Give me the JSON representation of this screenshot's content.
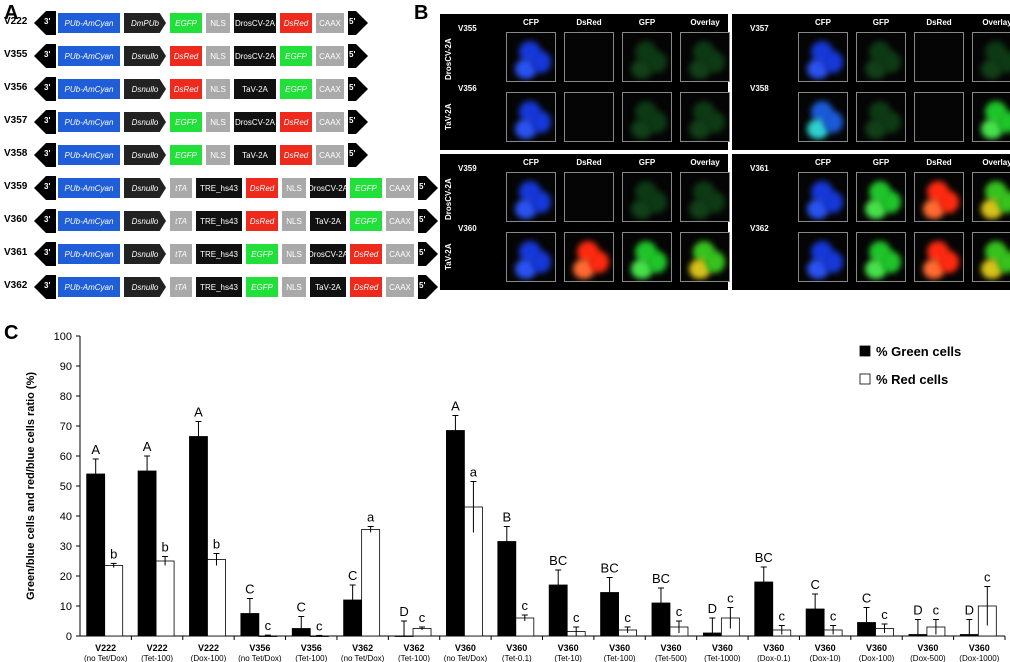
{
  "panels": {
    "a": "A",
    "b": "B",
    "c": "C"
  },
  "constructs": [
    {
      "id": "V222",
      "segments": [
        {
          "t": "PUb-AmCyan",
          "c": "blue",
          "w": 62
        },
        {
          "t": "DmPUb",
          "c": "prom",
          "w": 42
        },
        {
          "t": "EGFP",
          "c": "green",
          "w": 32
        },
        {
          "t": "NLS",
          "c": "gray",
          "w": 24
        },
        {
          "t": "DrosCV-2A",
          "c": "black",
          "w": 42
        },
        {
          "t": "DsRed",
          "c": "red",
          "w": 32
        },
        {
          "t": "CAAX",
          "c": "gray",
          "w": 28
        }
      ]
    },
    {
      "id": "V355",
      "segments": [
        {
          "t": "PUb-AmCyan",
          "c": "blue",
          "w": 62
        },
        {
          "t": "Dsnullo",
          "c": "prom",
          "w": 42
        },
        {
          "t": "DsRed",
          "c": "red",
          "w": 32
        },
        {
          "t": "NLS",
          "c": "gray",
          "w": 24
        },
        {
          "t": "DrosCV-2A",
          "c": "black",
          "w": 42
        },
        {
          "t": "EGFP",
          "c": "green",
          "w": 32
        },
        {
          "t": "CAAX",
          "c": "gray",
          "w": 28
        }
      ]
    },
    {
      "id": "V356",
      "segments": [
        {
          "t": "PUb-AmCyan",
          "c": "blue",
          "w": 62
        },
        {
          "t": "Dsnullo",
          "c": "prom",
          "w": 42
        },
        {
          "t": "DsRed",
          "c": "red",
          "w": 32
        },
        {
          "t": "NLS",
          "c": "gray",
          "w": 24
        },
        {
          "t": "TaV-2A",
          "c": "black",
          "w": 42
        },
        {
          "t": "EGFP",
          "c": "green",
          "w": 32
        },
        {
          "t": "CAAX",
          "c": "gray",
          "w": 28
        }
      ]
    },
    {
      "id": "V357",
      "segments": [
        {
          "t": "PUb-AmCyan",
          "c": "blue",
          "w": 62
        },
        {
          "t": "Dsnullo",
          "c": "prom",
          "w": 42
        },
        {
          "t": "EGFP",
          "c": "green",
          "w": 32
        },
        {
          "t": "NLS",
          "c": "gray",
          "w": 24
        },
        {
          "t": "DrosCV-2A",
          "c": "black",
          "w": 42
        },
        {
          "t": "DsRed",
          "c": "red",
          "w": 32
        },
        {
          "t": "CAAX",
          "c": "gray",
          "w": 28
        }
      ]
    },
    {
      "id": "V358",
      "segments": [
        {
          "t": "PUb-AmCyan",
          "c": "blue",
          "w": 62
        },
        {
          "t": "Dsnullo",
          "c": "prom",
          "w": 42
        },
        {
          "t": "EGFP",
          "c": "green",
          "w": 32
        },
        {
          "t": "NLS",
          "c": "gray",
          "w": 24
        },
        {
          "t": "TaV-2A",
          "c": "black",
          "w": 42
        },
        {
          "t": "DsRed",
          "c": "red",
          "w": 32
        },
        {
          "t": "CAAX",
          "c": "gray",
          "w": 28
        }
      ]
    },
    {
      "id": "V359",
      "segments": [
        {
          "t": "PUb-AmCyan",
          "c": "blue",
          "w": 62
        },
        {
          "t": "Dsnullo",
          "c": "prom",
          "w": 42
        },
        {
          "t": "tTA",
          "c": "tta",
          "w": 22
        },
        {
          "t": "TRE_hs43",
          "c": "black",
          "w": 46
        },
        {
          "t": "DsRed",
          "c": "red",
          "w": 32
        },
        {
          "t": "NLS",
          "c": "gray",
          "w": 24
        },
        {
          "t": "DrosCV-2A",
          "c": "black",
          "w": 36
        },
        {
          "t": "EGFP",
          "c": "green",
          "w": 32
        },
        {
          "t": "CAAX",
          "c": "gray",
          "w": 28
        }
      ]
    },
    {
      "id": "V360",
      "segments": [
        {
          "t": "PUb-AmCyan",
          "c": "blue",
          "w": 62
        },
        {
          "t": "Dsnullo",
          "c": "prom",
          "w": 42
        },
        {
          "t": "tTA",
          "c": "tta",
          "w": 22
        },
        {
          "t": "TRE_hs43",
          "c": "black",
          "w": 46
        },
        {
          "t": "DsRed",
          "c": "red",
          "w": 32
        },
        {
          "t": "NLS",
          "c": "gray",
          "w": 24
        },
        {
          "t": "TaV-2A",
          "c": "black",
          "w": 36
        },
        {
          "t": "EGFP",
          "c": "green",
          "w": 32
        },
        {
          "t": "CAAX",
          "c": "gray",
          "w": 28
        }
      ]
    },
    {
      "id": "V361",
      "segments": [
        {
          "t": "PUb-AmCyan",
          "c": "blue",
          "w": 62
        },
        {
          "t": "Dsnullo",
          "c": "prom",
          "w": 42
        },
        {
          "t": "tTA",
          "c": "tta",
          "w": 22
        },
        {
          "t": "TRE_hs43",
          "c": "black",
          "w": 46
        },
        {
          "t": "EGFP",
          "c": "green",
          "w": 32
        },
        {
          "t": "NLS",
          "c": "gray",
          "w": 24
        },
        {
          "t": "DrosCV-2A",
          "c": "black",
          "w": 36
        },
        {
          "t": "DsRed",
          "c": "red",
          "w": 32
        },
        {
          "t": "CAAX",
          "c": "gray",
          "w": 28
        }
      ]
    },
    {
      "id": "V362",
      "segments": [
        {
          "t": "PUb-AmCyan",
          "c": "blue",
          "w": 62
        },
        {
          "t": "Dsnullo",
          "c": "prom",
          "w": 42
        },
        {
          "t": "tTA",
          "c": "tta",
          "w": 22
        },
        {
          "t": "TRE_hs43",
          "c": "black",
          "w": 46
        },
        {
          "t": "EGFP",
          "c": "green",
          "w": 32
        },
        {
          "t": "NLS",
          "c": "gray",
          "w": 24
        },
        {
          "t": "TaV-2A",
          "c": "black",
          "w": 36
        },
        {
          "t": "DsRed",
          "c": "red",
          "w": 32
        },
        {
          "t": "CAAX",
          "c": "gray",
          "w": 28
        }
      ]
    }
  ],
  "ends": {
    "left": "3'",
    "right": "5'"
  },
  "micro": {
    "blocks": [
      {
        "cols": [
          "CFP",
          "DsRed",
          "GFP",
          "Overlay"
        ],
        "side": "DrosCV-2A",
        "side2": "TaV-2A",
        "rows": [
          "V355",
          "V356"
        ],
        "cells": [
          [
            "b",
            "",
            "g",
            "g"
          ],
          [
            "b",
            "",
            "g",
            "g"
          ]
        ]
      },
      {
        "cols": [
          "CFP",
          "GFP",
          "DsRed",
          "Overlay"
        ],
        "rows": [
          "V357",
          "V358"
        ],
        "cells": [
          [
            "b",
            "g",
            "",
            "g"
          ],
          [
            "bc",
            "g",
            "",
            "G"
          ]
        ]
      },
      {
        "cols": [
          "CFP",
          "DsRed",
          "GFP",
          "Overlay"
        ],
        "side": "DrosCV-2A",
        "side2": "TaV-2A",
        "rows": [
          "V359",
          "V360"
        ],
        "cells": [
          [
            "b",
            "",
            "g",
            "g"
          ],
          [
            "b",
            "R",
            "G",
            "Y"
          ]
        ]
      },
      {
        "cols": [
          "CFP",
          "GFP",
          "DsRed",
          "Overlay"
        ],
        "rows": [
          "V361",
          "V362"
        ],
        "cells": [
          [
            "b",
            "G",
            "R",
            "Y"
          ],
          [
            "b",
            "G",
            "R",
            "Y"
          ]
        ]
      }
    ]
  },
  "chart_data": {
    "type": "bar",
    "ylabel": "Green/blue cells and red/blue cells ratio (%)",
    "ylim": [
      0,
      100
    ],
    "yticks": [
      0,
      10,
      20,
      30,
      40,
      50,
      60,
      70,
      80,
      90,
      100
    ],
    "categories": [
      [
        "V222",
        "(no Tet/Dox)"
      ],
      [
        "V222",
        "(Tet-100)"
      ],
      [
        "V222",
        "(Dox-100)"
      ],
      [
        "V356",
        "(no Tet/Dox)"
      ],
      [
        "V356",
        "(Tet-100)"
      ],
      [
        "V362",
        "(no Tet/Dox)"
      ],
      [
        "V362",
        "(Tet-100)"
      ],
      [
        "V360",
        "(no Tet/Dox)"
      ],
      [
        "V360",
        "(Tet-0.1)"
      ],
      [
        "V360",
        "(Tet-10)"
      ],
      [
        "V360",
        "(Tet-100)"
      ],
      [
        "V360",
        "(Tet-500)"
      ],
      [
        "V360",
        "(Tet-1000)"
      ],
      [
        "V360",
        "(Dox-0.1)"
      ],
      [
        "V360",
        "(Dox-10)"
      ],
      [
        "V360",
        "(Dox-100)"
      ],
      [
        "V360",
        "(Dox-500)"
      ],
      [
        "V360",
        "(Dox-1000)"
      ]
    ],
    "series": [
      {
        "name": "% Green cells",
        "color": "#000000",
        "values": [
          54,
          55,
          66.5,
          7.5,
          2.5,
          12,
          0,
          68.5,
          31.5,
          17,
          14.5,
          11,
          1,
          18,
          9,
          4.5,
          0.5,
          0.5
        ],
        "errors": [
          5,
          5,
          5,
          5,
          4,
          5,
          5,
          5,
          5,
          5,
          5,
          5,
          5,
          5,
          5,
          5,
          5,
          5
        ],
        "letters": [
          "A",
          "A",
          "A",
          "C",
          "C",
          "C",
          "D",
          "A",
          "B",
          "BC",
          "BC",
          "BC",
          "D",
          "BC",
          "C",
          "C",
          "D",
          "D"
        ]
      },
      {
        "name": "% Red cells",
        "color": "#ffffff",
        "values": [
          23.5,
          25,
          25.5,
          0,
          0,
          35.5,
          2.5,
          43,
          6,
          1.5,
          2,
          3,
          6,
          2,
          2,
          2.5,
          3,
          10
        ],
        "errors": [
          0.7,
          1.5,
          2,
          0.3,
          0.2,
          1,
          0.5,
          8.5,
          1,
          1.5,
          1,
          2,
          3.5,
          1.5,
          1.5,
          1.5,
          2.5,
          6.5
        ],
        "letters": [
          "b",
          "b",
          "b",
          "c",
          "c",
          "a",
          "c",
          "a",
          "c",
          "c",
          "c",
          "c",
          "c",
          "c",
          "c",
          "c",
          "c",
          "c"
        ]
      }
    ],
    "legend_position": "top-right"
  }
}
